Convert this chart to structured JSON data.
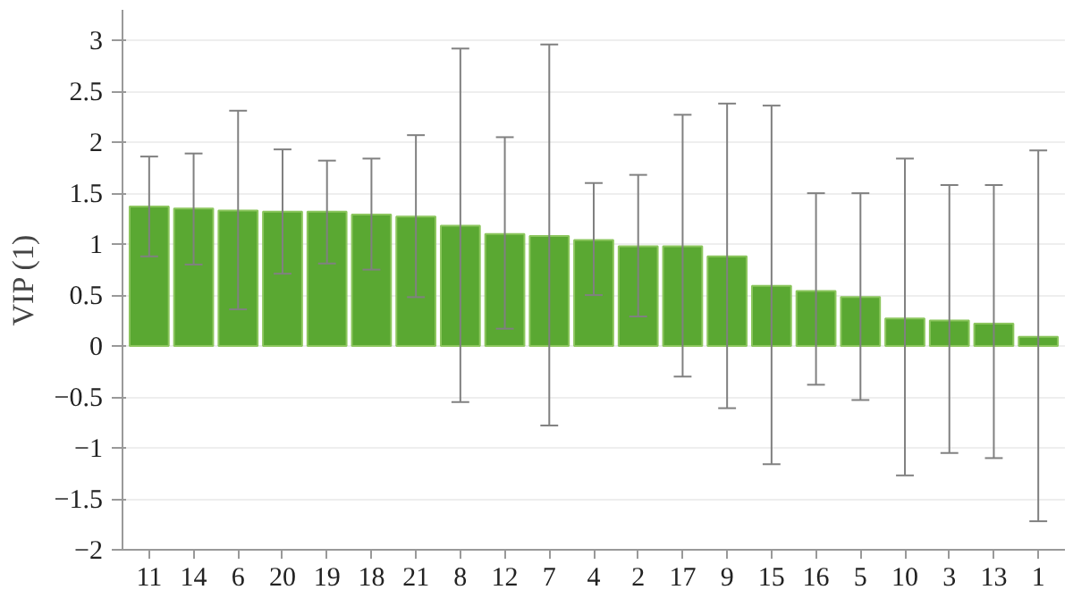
{
  "chart_data": {
    "type": "bar",
    "ylabel": "VIP (1)",
    "categories": [
      "11",
      "14",
      "6",
      "20",
      "19",
      "18",
      "21",
      "8",
      "12",
      "7",
      "4",
      "2",
      "17",
      "9",
      "15",
      "16",
      "5",
      "10",
      "3",
      "13",
      "1"
    ],
    "values": [
      1.37,
      1.35,
      1.33,
      1.32,
      1.32,
      1.29,
      1.27,
      1.18,
      1.1,
      1.08,
      1.04,
      0.98,
      0.98,
      0.88,
      0.59,
      0.54,
      0.48,
      0.27,
      0.25,
      0.22,
      0.09
    ],
    "errors": [
      [
        0.88,
        1.86
      ],
      [
        0.8,
        1.89
      ],
      [
        0.36,
        2.31
      ],
      [
        0.71,
        1.93
      ],
      [
        0.81,
        1.82
      ],
      [
        0.75,
        1.84
      ],
      [
        0.48,
        2.07
      ],
      [
        -0.55,
        2.92
      ],
      [
        0.17,
        2.05
      ],
      [
        -0.78,
        2.96
      ],
      [
        0.5,
        1.6
      ],
      [
        0.29,
        1.68
      ],
      [
        -0.3,
        2.27
      ],
      [
        -0.61,
        2.38
      ],
      [
        -1.16,
        2.36
      ],
      [
        -0.38,
        1.5
      ],
      [
        -0.53,
        1.5
      ],
      [
        -1.27,
        1.84
      ],
      [
        -1.05,
        1.58
      ],
      [
        -1.1,
        1.58
      ],
      [
        -1.72,
        1.92
      ]
    ],
    "color": "#5aa832",
    "ylim": [
      -2,
      3.3
    ],
    "yticks": [
      3,
      2.5,
      2,
      1.5,
      1,
      0.5,
      0,
      {
        "value": -0.5,
        "label": "−0.5"
      },
      {
        "value": -1,
        "label": "−1"
      },
      {
        "value": -1.5,
        "label": "−1.5"
      },
      {
        "value": -2,
        "label": "−2"
      }
    ],
    "grid": "y"
  }
}
